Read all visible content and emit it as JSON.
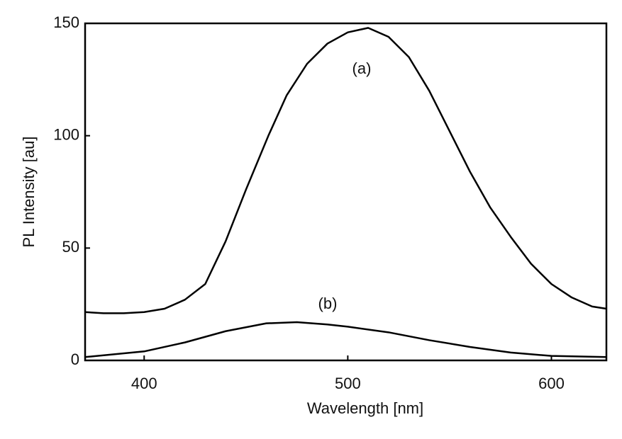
{
  "chart_data": {
    "type": "line",
    "x_label": "Wavelength [nm]",
    "y_label": "PL Intensity [au]",
    "xlim": [
      371,
      627
    ],
    "ylim": [
      0,
      150
    ],
    "xticks": [
      400,
      500,
      600
    ],
    "yticks": [
      0,
      50,
      100,
      150
    ],
    "series": [
      {
        "name": "(a)",
        "color": "#000000",
        "x": [
          371,
          380,
          390,
          400,
          410,
          420,
          430,
          440,
          450,
          461,
          470,
          480,
          490,
          500,
          510,
          520,
          530,
          540,
          550,
          560,
          570,
          580,
          590,
          600,
          610,
          620,
          627
        ],
        "values": [
          21.5,
          21,
          21,
          21.5,
          23,
          27,
          34,
          53,
          76,
          100,
          118,
          132,
          141,
          146,
          148,
          144,
          135,
          120,
          102,
          84,
          68,
          55,
          43,
          34,
          28,
          24,
          23
        ]
      },
      {
        "name": "(b)",
        "color": "#000000",
        "x": [
          371,
          400,
          420,
          440,
          460,
          475,
          490,
          500,
          520,
          540,
          560,
          580,
          600,
          627
        ],
        "values": [
          1.5,
          4,
          8,
          13,
          16.5,
          17,
          16,
          15,
          12.5,
          9,
          6,
          3.5,
          2,
          1.5
        ]
      }
    ]
  }
}
